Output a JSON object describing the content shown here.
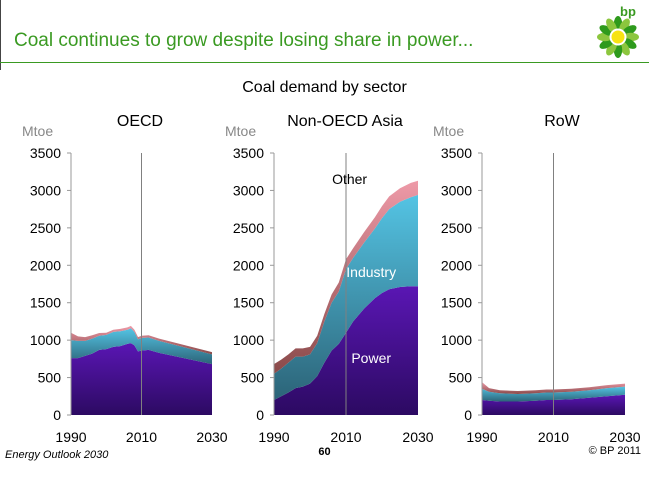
{
  "slide": {
    "title": "Coal continues to grow despite losing share in power...",
    "subtitle": "Coal demand by sector",
    "logo_text": "bp",
    "footer_left": "Energy Outlook 2030",
    "page_number": "60",
    "footer_right": "© BP 2011"
  },
  "colors": {
    "title": "#3a9a22",
    "power": "#5a16b4",
    "industry": "#54c4e4",
    "other": "#8a4a4a",
    "power_dark": "#2c0a62",
    "industry_dark": "#2c6478",
    "other_pink": "#ee9aa8"
  },
  "chart_data": [
    {
      "type": "area",
      "title": "OECD",
      "ylabel": "Mtoe",
      "ylim": [
        0,
        3500
      ],
      "yticks": [
        0,
        500,
        1000,
        1500,
        2000,
        2500,
        3000,
        3500
      ],
      "xlim": [
        1990,
        2030
      ],
      "xticks": [
        1990,
        2010,
        2030
      ],
      "divider_year": 2010,
      "stacked": true,
      "x": [
        1990,
        1992,
        1994,
        1996,
        1998,
        2000,
        2002,
        2004,
        2006,
        2007,
        2008,
        2009,
        2010,
        2012,
        2015,
        2020,
        2025,
        2030
      ],
      "series": [
        {
          "name": "Power",
          "values": [
            760,
            760,
            790,
            820,
            870,
            880,
            910,
            920,
            950,
            960,
            930,
            850,
            860,
            870,
            830,
            780,
            730,
            680
          ]
        },
        {
          "name": "Industry",
          "values": [
            240,
            230,
            200,
            200,
            190,
            190,
            200,
            200,
            190,
            200,
            180,
            160,
            170,
            165,
            160,
            150,
            140,
            130
          ]
        },
        {
          "name": "Other",
          "values": [
            100,
            60,
            50,
            45,
            35,
            30,
            30,
            30,
            30,
            30,
            30,
            30,
            30,
            30,
            30,
            30,
            30,
            30
          ]
        }
      ],
      "annotations": []
    },
    {
      "type": "area",
      "title": "Non-OECD Asia",
      "ylabel": "Mtoe",
      "ylim": [
        0,
        3500
      ],
      "yticks": [
        0,
        500,
        1000,
        1500,
        2000,
        2500,
        3000,
        3500
      ],
      "xlim": [
        1990,
        2030
      ],
      "xticks": [
        1990,
        2010,
        2030
      ],
      "divider_year": 2010,
      "stacked": true,
      "x": [
        1990,
        1992,
        1994,
        1996,
        1998,
        2000,
        2002,
        2004,
        2006,
        2008,
        2010,
        2012,
        2015,
        2018,
        2020,
        2022,
        2025,
        2028,
        2030
      ],
      "series": [
        {
          "name": "Power",
          "values": [
            200,
            250,
            300,
            360,
            380,
            420,
            520,
            700,
            860,
            950,
            1100,
            1250,
            1420,
            1560,
            1630,
            1680,
            1710,
            1720,
            1720
          ]
        },
        {
          "name": "Industry",
          "values": [
            350,
            370,
            400,
            420,
            400,
            390,
            440,
            550,
            640,
            700,
            850,
            850,
            880,
            930,
            1000,
            1070,
            1140,
            1190,
            1220
          ]
        },
        {
          "name": "Other",
          "values": [
            130,
            120,
            110,
            110,
            110,
            100,
            100,
            100,
            110,
            120,
            130,
            130,
            140,
            150,
            160,
            170,
            180,
            190,
            190
          ]
        }
      ],
      "annotations": [
        {
          "text": "Other",
          "x": 2011,
          "y": 3150,
          "color": "#000000",
          "anchor": "middle"
        },
        {
          "text": "Industry",
          "x": 2017,
          "y": 1910,
          "color": "#ffffff",
          "anchor": "middle"
        },
        {
          "text": "Power",
          "x": 2017,
          "y": 760,
          "color": "#ffffff",
          "anchor": "middle"
        }
      ]
    },
    {
      "type": "area",
      "title": "RoW",
      "ylabel": "Mtoe",
      "ylim": [
        0,
        3500
      ],
      "yticks": [
        0,
        500,
        1000,
        1500,
        2000,
        2500,
        3000,
        3500
      ],
      "xlim": [
        1990,
        2030
      ],
      "xticks": [
        1990,
        2010,
        2030
      ],
      "divider_year": 2010,
      "stacked": true,
      "x": [
        1990,
        1992,
        1995,
        2000,
        2005,
        2008,
        2010,
        2015,
        2020,
        2025,
        2030
      ],
      "series": [
        {
          "name": "Power",
          "values": [
            200,
            190,
            180,
            180,
            190,
            200,
            200,
            210,
            230,
            250,
            270
          ]
        },
        {
          "name": "Industry",
          "values": [
            150,
            120,
            110,
            100,
            100,
            100,
            100,
            100,
            100,
            110,
            110
          ]
        },
        {
          "name": "Other",
          "values": [
            90,
            50,
            40,
            40,
            40,
            40,
            40,
            40,
            40,
            40,
            40
          ]
        }
      ],
      "annotations": []
    }
  ]
}
